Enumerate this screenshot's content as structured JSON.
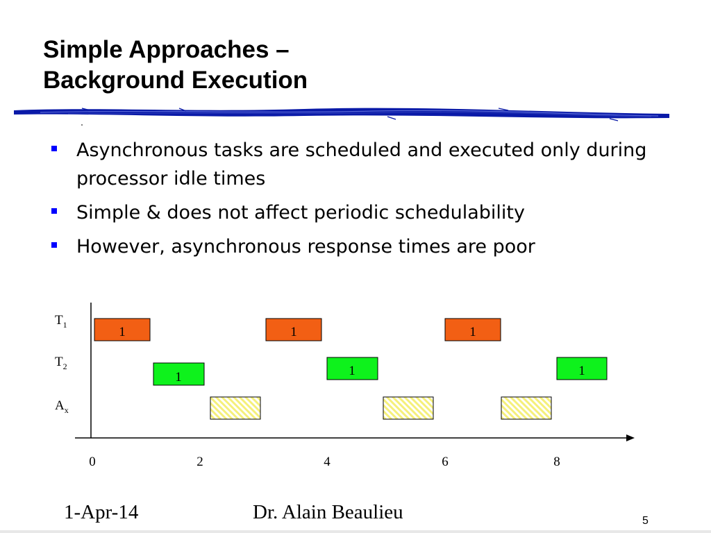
{
  "slide": {
    "title_line1": "Simple Approaches –",
    "title_line2": "Background Execution",
    "bullets": [
      "Asynchronous tasks are scheduled and executed only during processor idle times",
      "Simple & does not affect periodic schedulability",
      "However, asynchronous response times are poor"
    ],
    "footer_date": "1-Apr-14",
    "footer_author": "Dr. Alain Beaulieu",
    "page_number": "5",
    "colors": {
      "rule": "#0a1aa8",
      "bullet": "#0000ff",
      "t1_task": "#f25f14",
      "t2_task": "#0ef21c",
      "ax_hatch": "#f5f07a"
    }
  },
  "diagram": {
    "rows": [
      {
        "base": "T",
        "sub": "1",
        "id": "t1"
      },
      {
        "base": "T",
        "sub": "2",
        "id": "t2"
      },
      {
        "base": "A",
        "sub": "x",
        "id": "ax"
      }
    ],
    "x_ticks": [
      "0",
      "2",
      "4",
      "6",
      "8"
    ],
    "tasks": {
      "t1": [
        {
          "label": "1"
        },
        {
          "label": "1"
        },
        {
          "label": "1"
        }
      ],
      "t2": [
        {
          "label": "1"
        },
        {
          "label": "1"
        },
        {
          "label": "1"
        }
      ],
      "ax": [
        {
          "label": ""
        },
        {
          "label": ""
        },
        {
          "label": ""
        }
      ]
    }
  }
}
